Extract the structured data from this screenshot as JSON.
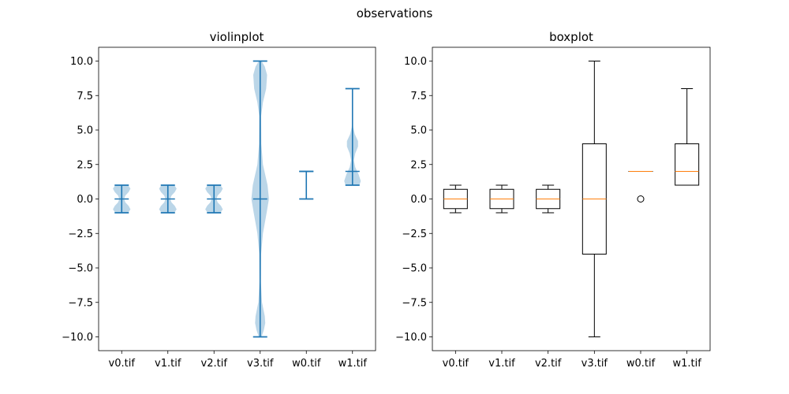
{
  "figure": {
    "suptitle": "observations"
  },
  "colors": {
    "violin_body": "#1f77b4",
    "violin_body_alpha": 0.3,
    "violin_lines": "#1f77b4",
    "box_lines": "#000000",
    "median": "#ff7f0e"
  },
  "chart_data": [
    {
      "type": "violin",
      "title": "violinplot",
      "xlabel": "",
      "ylabel": "",
      "categories": [
        "v0.tif",
        "v1.tif",
        "v2.tif",
        "v3.tif",
        "w0.tif",
        "w1.tif"
      ],
      "ylim": [
        -11,
        11
      ],
      "yticks": [
        -10.0,
        -7.5,
        -5.0,
        -2.5,
        0.0,
        2.5,
        5.0,
        7.5,
        10.0
      ],
      "ytick_labels": [
        "−10.0",
        "−7.5",
        "−5.0",
        "−2.5",
        "0.0",
        "2.5",
        "5.0",
        "7.5",
        "10.0"
      ],
      "show_medians": true,
      "grid": false,
      "violins": [
        {
          "name": "v0.tif",
          "min": -1,
          "max": 1,
          "median": 0,
          "density": [
            [
              -1,
              0.28
            ],
            [
              -0.75,
              0.38
            ],
            [
              -0.5,
              0.3
            ],
            [
              -0.25,
              0.16
            ],
            [
              0,
              0.1
            ],
            [
              0.25,
              0.16
            ],
            [
              0.5,
              0.3
            ],
            [
              0.75,
              0.38
            ],
            [
              1,
              0.28
            ]
          ]
        },
        {
          "name": "v1.tif",
          "min": -1,
          "max": 1,
          "median": 0,
          "density": [
            [
              -1,
              0.28
            ],
            [
              -0.75,
              0.38
            ],
            [
              -0.5,
              0.3
            ],
            [
              -0.25,
              0.16
            ],
            [
              0,
              0.1
            ],
            [
              0.25,
              0.16
            ],
            [
              0.5,
              0.3
            ],
            [
              0.75,
              0.38
            ],
            [
              1,
              0.28
            ]
          ]
        },
        {
          "name": "v2.tif",
          "min": -1,
          "max": 1,
          "median": 0,
          "density": [
            [
              -1,
              0.28
            ],
            [
              -0.75,
              0.38
            ],
            [
              -0.5,
              0.3
            ],
            [
              -0.25,
              0.16
            ],
            [
              0,
              0.1
            ],
            [
              0.25,
              0.16
            ],
            [
              0.5,
              0.3
            ],
            [
              0.75,
              0.38
            ],
            [
              1,
              0.28
            ]
          ]
        },
        {
          "name": "v3.tif",
          "min": -10,
          "max": 10,
          "median": 0,
          "density": [
            [
              -10,
              0.06
            ],
            [
              -9.5,
              0.16
            ],
            [
              -9,
              0.22
            ],
            [
              -8.5,
              0.2
            ],
            [
              -7.5,
              0.08
            ],
            [
              -6,
              0.03
            ],
            [
              -4,
              0.04
            ],
            [
              -2.5,
              0.12
            ],
            [
              -1,
              0.28
            ],
            [
              0,
              0.38
            ],
            [
              1,
              0.32
            ],
            [
              2.5,
              0.12
            ],
            [
              4,
              0.05
            ],
            [
              6,
              0.04
            ],
            [
              7,
              0.12
            ],
            [
              8,
              0.26
            ],
            [
              9,
              0.3
            ],
            [
              9.6,
              0.2
            ],
            [
              10,
              0.06
            ]
          ]
        },
        {
          "name": "w0.tif",
          "min": 0,
          "max": 2,
          "median": 2,
          "density": []
        },
        {
          "name": "w1.tif",
          "min": 1,
          "max": 8,
          "median": 2,
          "density": [
            [
              1,
              0.3
            ],
            [
              1.3,
              0.36
            ],
            [
              1.8,
              0.26
            ],
            [
              2.3,
              0.12
            ],
            [
              2.8,
              0.06
            ],
            [
              3.3,
              0.12
            ],
            [
              3.8,
              0.24
            ],
            [
              4.2,
              0.24
            ],
            [
              4.7,
              0.1
            ],
            [
              5.2,
              0.03
            ],
            [
              6,
              0.005
            ],
            [
              8,
              0.0
            ]
          ]
        }
      ]
    },
    {
      "type": "box",
      "title": "boxplot",
      "xlabel": "",
      "ylabel": "",
      "categories": [
        "v0.tif",
        "v1.tif",
        "v2.tif",
        "v3.tif",
        "w0.tif",
        "w1.tif"
      ],
      "ylim": [
        -11,
        11
      ],
      "yticks": [
        -10.0,
        -7.5,
        -5.0,
        -2.5,
        0.0,
        2.5,
        5.0,
        7.5,
        10.0
      ],
      "ytick_labels": [
        "−10.0",
        "−7.5",
        "−5.0",
        "−2.5",
        "0.0",
        "2.5",
        "5.0",
        "7.5",
        "10.0"
      ],
      "grid": false,
      "boxes": [
        {
          "name": "v0.tif",
          "whislo": -1,
          "q1": -0.7,
          "med": 0,
          "q3": 0.7,
          "whishi": 1,
          "fliers": []
        },
        {
          "name": "v1.tif",
          "whislo": -1,
          "q1": -0.7,
          "med": 0,
          "q3": 0.7,
          "whishi": 1,
          "fliers": []
        },
        {
          "name": "v2.tif",
          "whislo": -1,
          "q1": -0.7,
          "med": 0,
          "q3": 0.7,
          "whishi": 1,
          "fliers": []
        },
        {
          "name": "v3.tif",
          "whislo": -10,
          "q1": -4,
          "med": 0,
          "q3": 4,
          "whishi": 10,
          "fliers": []
        },
        {
          "name": "w0.tif",
          "whislo": 2,
          "q1": 2,
          "med": 2,
          "q3": 2,
          "whishi": 2,
          "fliers": [
            0
          ]
        },
        {
          "name": "w1.tif",
          "whislo": 1,
          "q1": 1,
          "med": 2,
          "q3": 4,
          "whishi": 8,
          "fliers": []
        }
      ]
    }
  ]
}
